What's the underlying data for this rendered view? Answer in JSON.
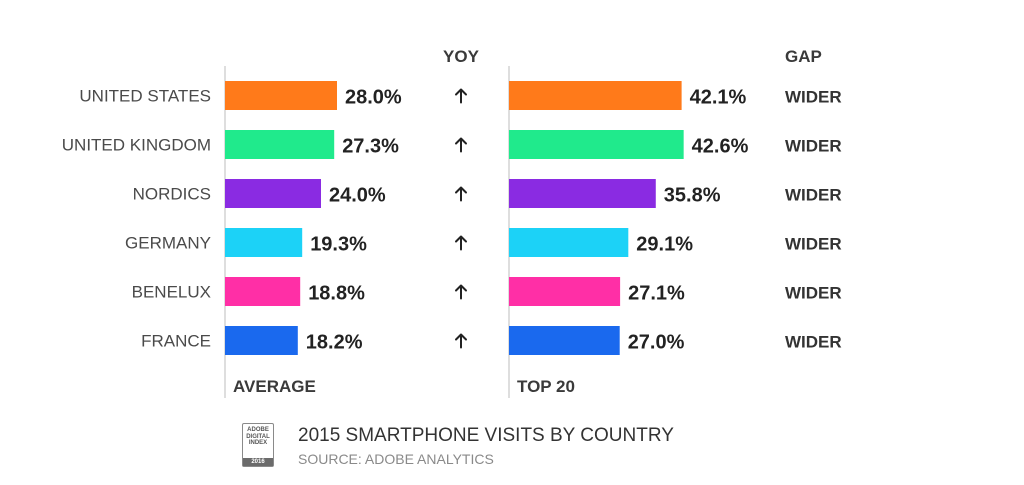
{
  "chart_data": {
    "type": "bar",
    "title": "2015 SMARTPHONE VISITS BY COUNTRY",
    "source": "SOURCE: ADOBE ANALYTICS",
    "categories": [
      "UNITED STATES",
      "UNITED KINGDOM",
      "NORDICS",
      "GERMANY",
      "BENELUX",
      "FRANCE"
    ],
    "series": [
      {
        "name": "AVERAGE",
        "values": [
          28.0,
          27.3,
          24.0,
          19.3,
          18.8,
          18.2
        ],
        "labels": [
          "28.0%",
          "27.3%",
          "24.0%",
          "19.3%",
          "18.8%",
          "18.2%"
        ]
      },
      {
        "name": "TOP 20",
        "values": [
          42.1,
          42.6,
          35.8,
          29.1,
          27.1,
          27.0
        ],
        "labels": [
          "42.1%",
          "42.6%",
          "35.8%",
          "29.1%",
          "27.1%",
          "27.0%"
        ]
      }
    ],
    "yoy_header": "YOY",
    "yoy": [
      "up",
      "up",
      "up",
      "up",
      "up",
      "up"
    ],
    "gap_header": "GAP",
    "gap": [
      "WIDER",
      "WIDER",
      "WIDER",
      "WIDER",
      "WIDER",
      "WIDER"
    ],
    "colors": [
      "#ff7a1a",
      "#20ea8c",
      "#8a2be2",
      "#1cd2f7",
      "#ff2fa6",
      "#1a69ee"
    ]
  },
  "badge": {
    "lines": [
      "ADOBE",
      "DIGITAL",
      "INDEX"
    ],
    "year": "2016"
  }
}
